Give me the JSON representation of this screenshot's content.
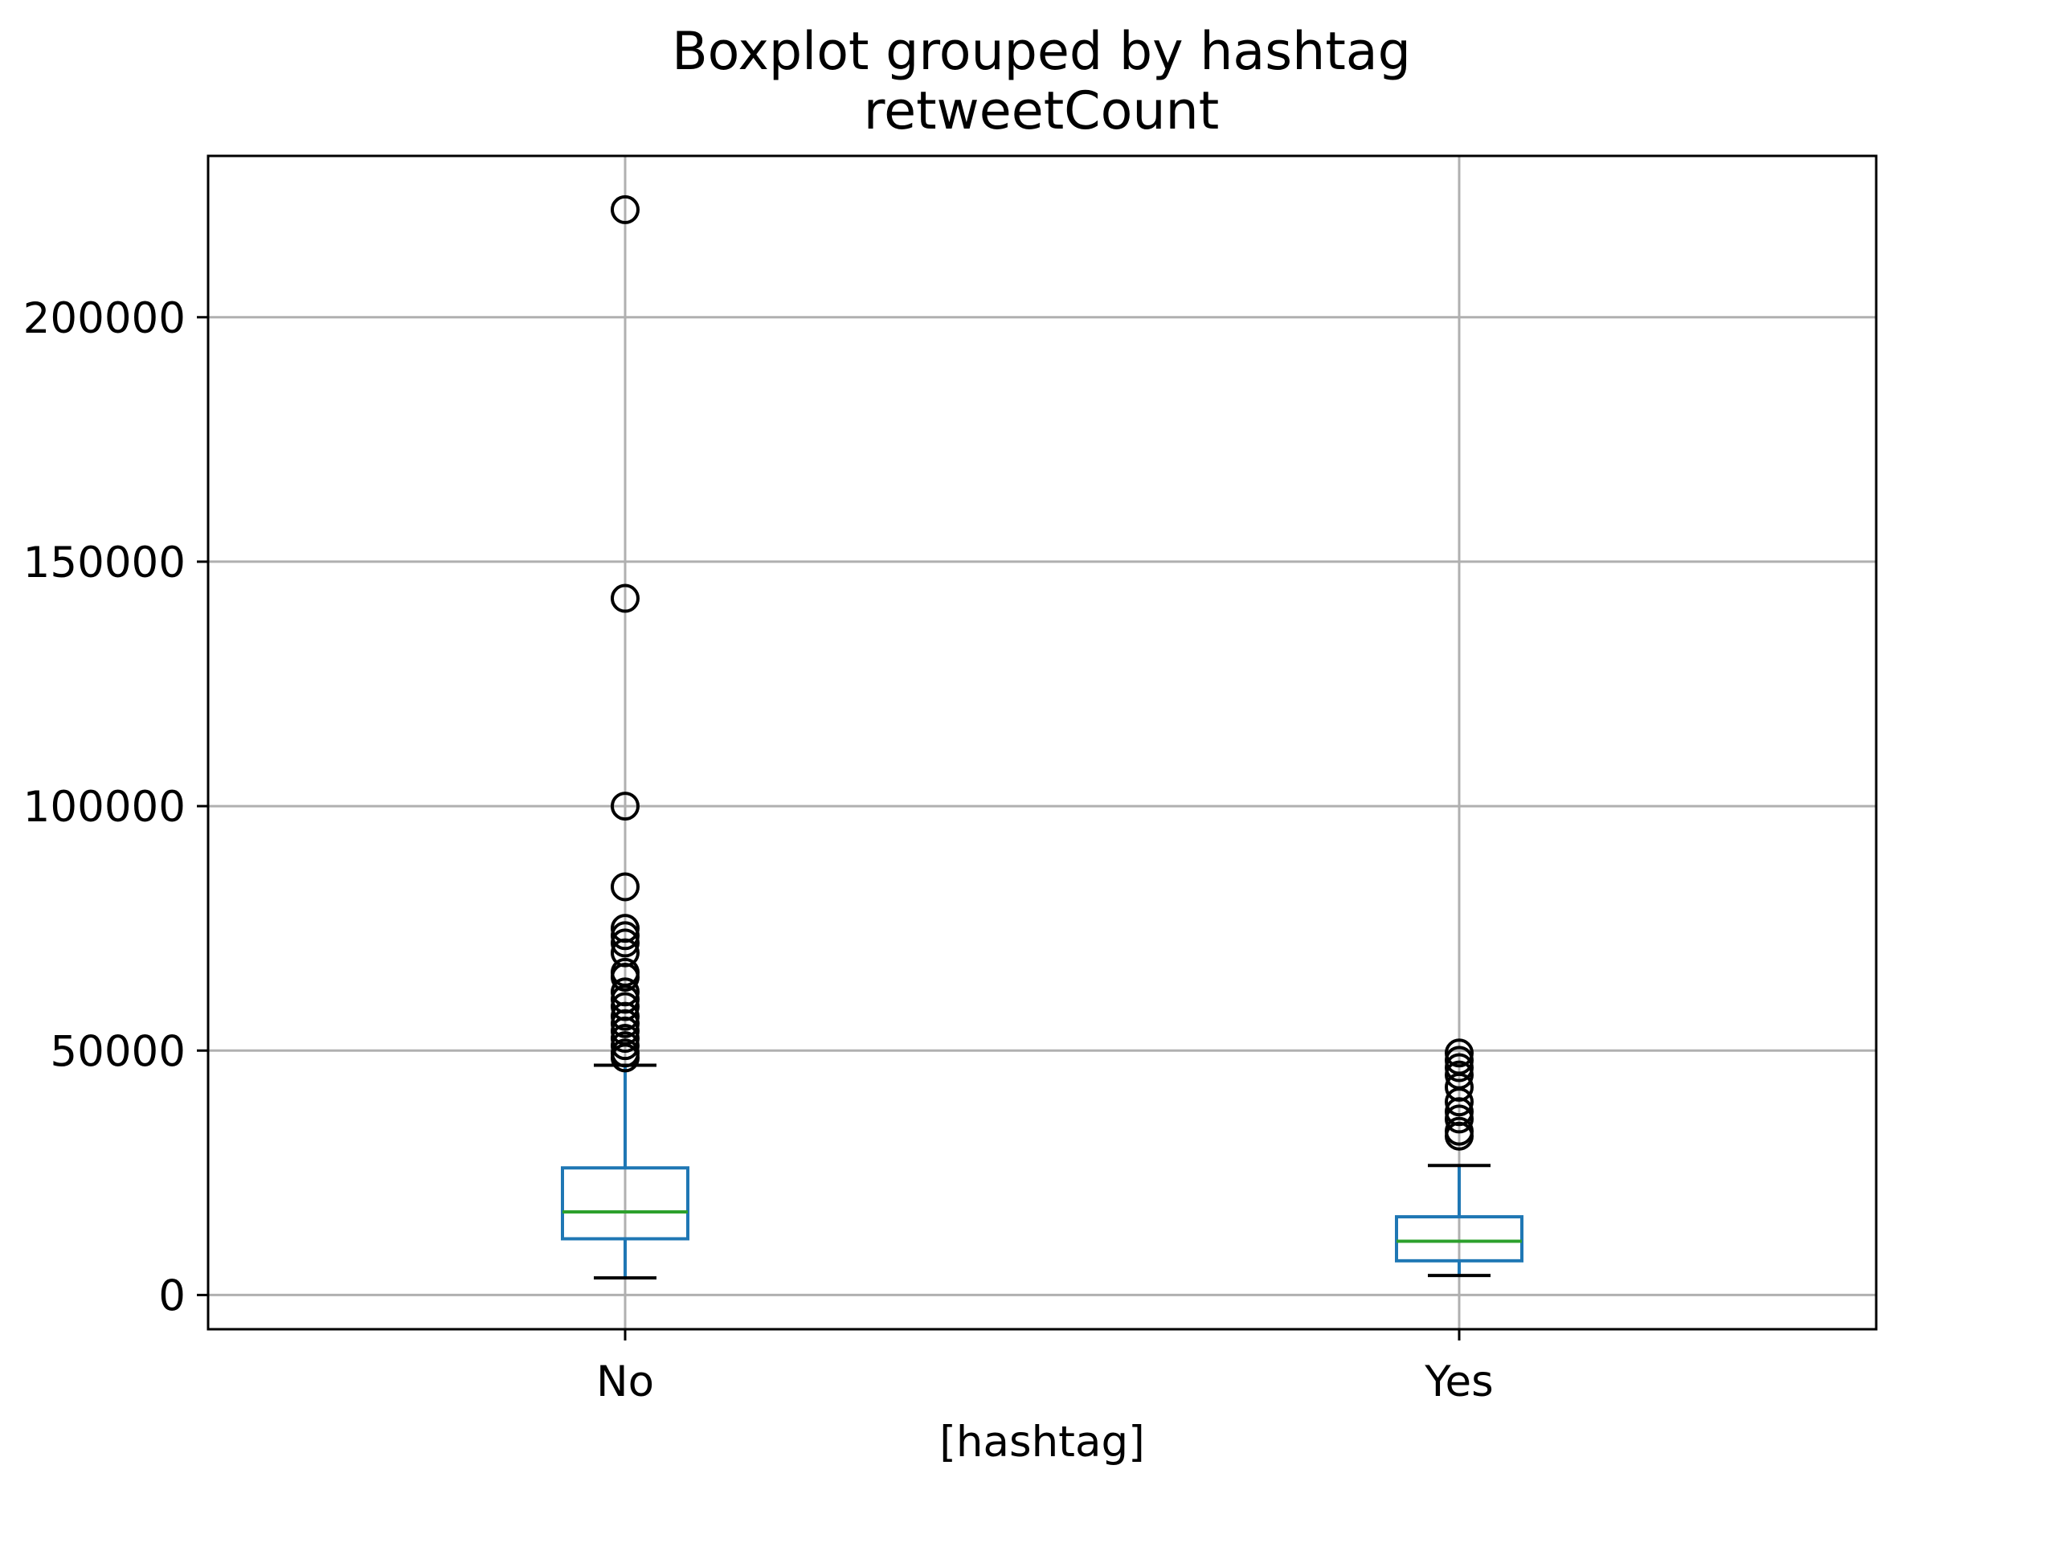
{
  "chart_data": {
    "type": "box",
    "title": "Boxplot grouped by hashtag",
    "subtitle": "retweetCount",
    "xlabel": "[hashtag]",
    "ylabel": "",
    "ylim": [
      -7000,
      233000
    ],
    "yticks": [
      0,
      50000,
      100000,
      150000,
      200000
    ],
    "ytick_labels": [
      "0",
      "50000",
      "100000",
      "150000",
      "200000"
    ],
    "grid": true,
    "categories": [
      "No",
      "Yes"
    ],
    "boxes": [
      {
        "label": "No",
        "whisker_low": 3500,
        "q1": 11500,
        "median": 17000,
        "q3": 26000,
        "whisker_high": 47000,
        "outliers": [
          222000,
          142500,
          100000,
          83500,
          75000,
          73500,
          72000,
          70000,
          66000,
          65000,
          62000,
          60500,
          59000,
          57000,
          55500,
          54000,
          52500,
          51000,
          49500,
          48500
        ]
      },
      {
        "label": "Yes",
        "whisker_low": 4000,
        "q1": 7000,
        "median": 11000,
        "q3": 16000,
        "whisker_high": 26500,
        "outliers": [
          49500,
          48000,
          46500,
          45000,
          42500,
          39500,
          37500,
          36000,
          33500,
          32500
        ]
      }
    ],
    "colors": {
      "box": "#1f77b4",
      "median": "#2ca02c",
      "whisker_cap": "#000000",
      "outlier": "#000000",
      "grid": "#b0b0b0",
      "frame": "#000000"
    }
  }
}
